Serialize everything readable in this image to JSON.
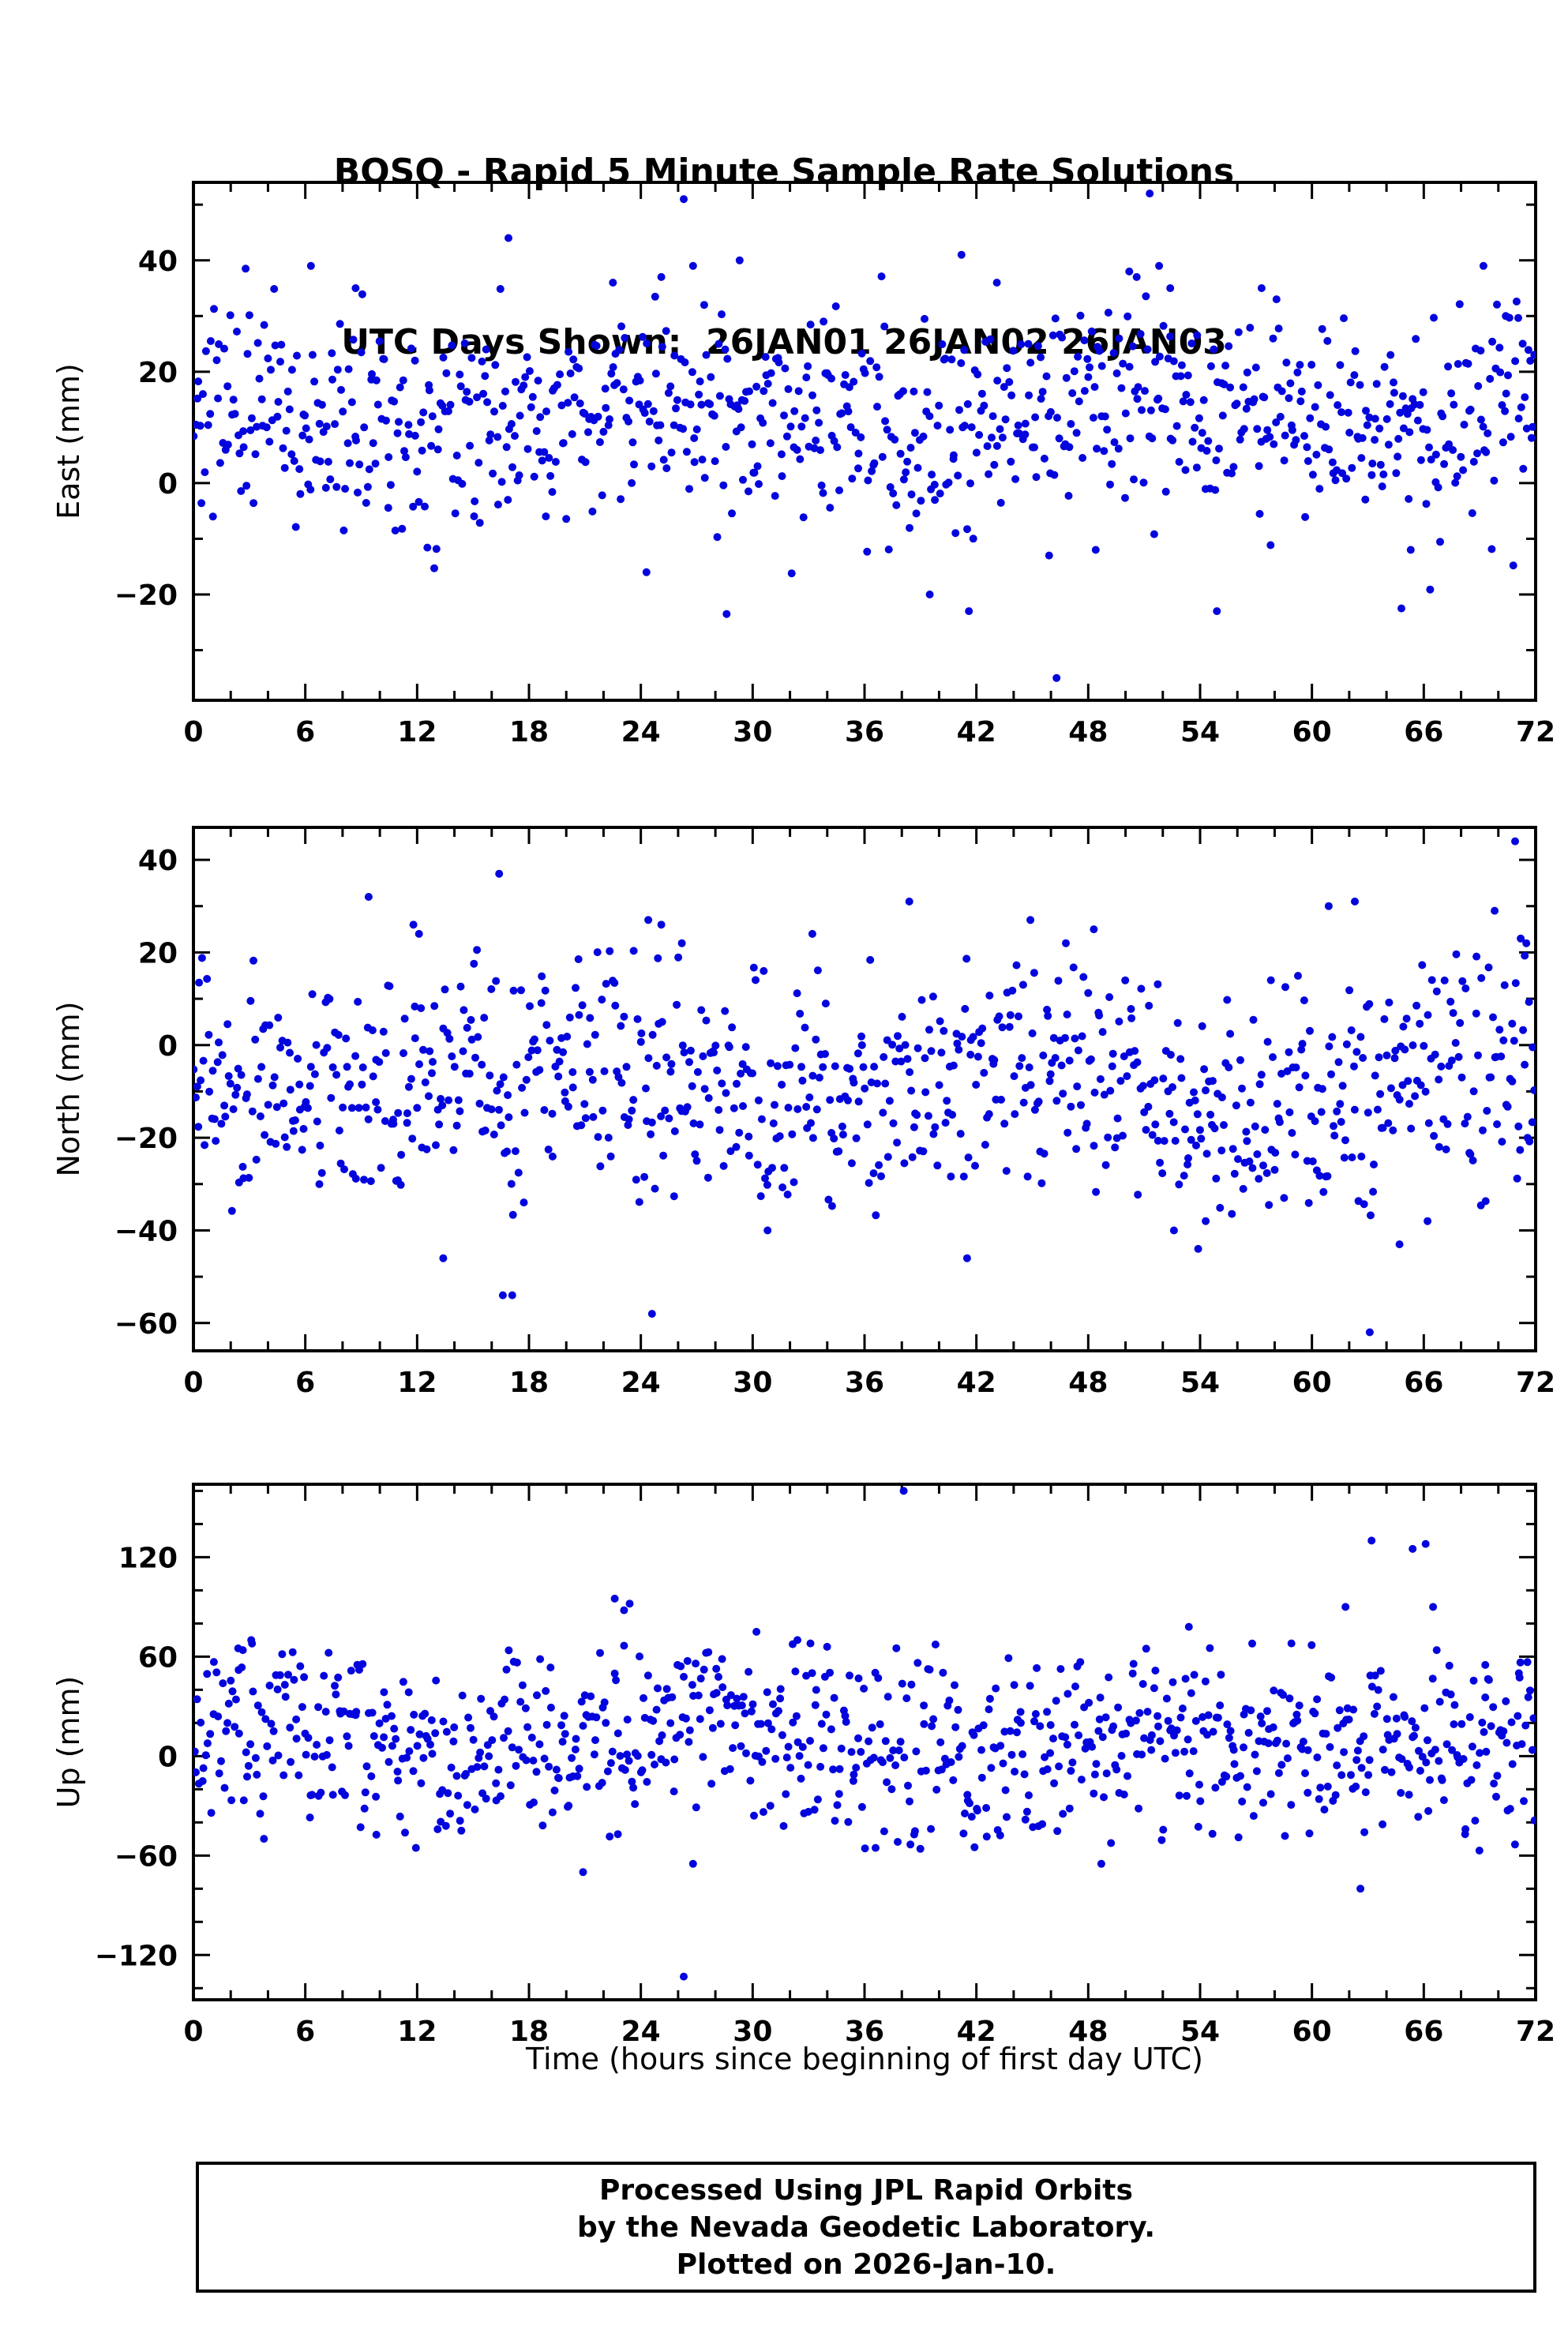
{
  "header": {
    "title": "BOSQ - Rapid 5 Minute Sample Rate Solutions",
    "subtitle": "UTC Days Shown:  26JAN01 26JAN02 26JAN03"
  },
  "xlabel": "Time (hours since beginning of first day UTC)",
  "footer": {
    "line1": "Processed Using JPL Rapid Orbits",
    "line2": "by the Nevada Geodetic Laboratory.",
    "line3": "Plotted on 2026-Jan-10."
  },
  "chart_data": [
    {
      "type": "scatter",
      "id": "east",
      "ylabel": "East (mm)",
      "marker_color": "#0404dd",
      "marker_radius": 5,
      "x_range": [
        0,
        72
      ],
      "xtick_major": 6,
      "xtick_minor": 2,
      "x_major_tick_labels": [
        0,
        6,
        12,
        18,
        24,
        30,
        36,
        42,
        48,
        54,
        60,
        66,
        72
      ],
      "ylim": [
        -39,
        54
      ],
      "yticks_major": [
        -20,
        0,
        20,
        40
      ],
      "ytick_minor": 10,
      "bulk_distribution": {
        "n": 860,
        "mean": 12,
        "std": 9,
        "clamp": [
          -25,
          41
        ],
        "seed": 101,
        "drift_amp": 3,
        "drift_period": 24,
        "drift_phase": 1.2
      },
      "outliers": [
        [
          2.8,
          38.5
        ],
        [
          6.3,
          39
        ],
        [
          8.7,
          35
        ],
        [
          16.9,
          44
        ],
        [
          22.5,
          36
        ],
        [
          24.3,
          -16
        ],
        [
          25.1,
          37
        ],
        [
          26.3,
          51
        ],
        [
          26.8,
          39
        ],
        [
          27.4,
          32
        ],
        [
          28.6,
          -23.5
        ],
        [
          29.3,
          40
        ],
        [
          33.8,
          29
        ],
        [
          39.5,
          -20
        ],
        [
          41.2,
          41
        ],
        [
          41.6,
          -23
        ],
        [
          43.1,
          36
        ],
        [
          45.9,
          -13
        ],
        [
          46.3,
          -35
        ],
        [
          48.4,
          -12
        ],
        [
          50.2,
          38
        ],
        [
          50.6,
          37
        ],
        [
          51.3,
          52
        ],
        [
          51.8,
          39
        ],
        [
          52.4,
          35
        ],
        [
          54.9,
          -23
        ],
        [
          57.3,
          35
        ],
        [
          58.1,
          33
        ],
        [
          64.8,
          -22.5
        ],
        [
          65.3,
          -12
        ],
        [
          69.2,
          39
        ],
        [
          70.4,
          30
        ]
      ]
    },
    {
      "type": "scatter",
      "id": "north",
      "ylabel": "North (mm)",
      "marker_color": "#0404dd",
      "marker_radius": 5,
      "x_range": [
        0,
        72
      ],
      "xtick_major": 6,
      "xtick_minor": 2,
      "x_major_tick_labels": [
        0,
        6,
        12,
        18,
        24,
        30,
        36,
        42,
        48,
        54,
        60,
        66,
        72
      ],
      "ylim": [
        -66,
        47
      ],
      "yticks_major": [
        -60,
        -40,
        -20,
        0,
        20,
        40
      ],
      "ytick_minor": 10,
      "bulk_distribution": {
        "n": 860,
        "mean": -8,
        "std": 13,
        "clamp": [
          -37,
          21
        ],
        "seed": 202,
        "drift_amp": 4,
        "drift_period": 24,
        "drift_phase": 2.6
      },
      "outliers": [
        [
          0.3,
          13.5
        ],
        [
          9.4,
          32
        ],
        [
          11.8,
          26
        ],
        [
          12.1,
          24
        ],
        [
          13.4,
          -46
        ],
        [
          16.4,
          37
        ],
        [
          16.6,
          -54
        ],
        [
          17.1,
          -54
        ],
        [
          24.4,
          27
        ],
        [
          24.6,
          -58
        ],
        [
          25.1,
          26
        ],
        [
          26.2,
          22
        ],
        [
          30.8,
          -40
        ],
        [
          33.2,
          24
        ],
        [
          38.4,
          31
        ],
        [
          41.5,
          -46
        ],
        [
          44.9,
          27
        ],
        [
          46.8,
          22
        ],
        [
          48.3,
          25
        ],
        [
          52.6,
          -40
        ],
        [
          53.9,
          -44
        ],
        [
          54.3,
          -38
        ],
        [
          57.8,
          14
        ],
        [
          60.9,
          30
        ],
        [
          62.3,
          31
        ],
        [
          63.1,
          -62
        ],
        [
          64.7,
          -43
        ],
        [
          66.2,
          -38
        ],
        [
          69.8,
          29
        ],
        [
          70.9,
          44
        ],
        [
          71.2,
          23
        ],
        [
          71.5,
          22
        ]
      ]
    },
    {
      "type": "scatter",
      "id": "up",
      "ylabel": "Up (mm)",
      "marker_color": "#0404dd",
      "marker_radius": 5,
      "x_range": [
        0,
        72
      ],
      "xtick_major": 6,
      "xtick_minor": 2,
      "x_major_tick_labels": [
        0,
        6,
        12,
        18,
        24,
        30,
        36,
        42,
        48,
        54,
        60,
        66,
        72
      ],
      "ylim": [
        -147,
        164
      ],
      "yticks_major": [
        -120,
        -60,
        0,
        60,
        120
      ],
      "ytick_minor": 20,
      "bulk_distribution": {
        "n": 860,
        "mean": 10,
        "std": 30,
        "clamp": [
          -62,
          68
        ],
        "seed": 303,
        "drift_amp": 10,
        "drift_period": 24,
        "drift_phase": 0.4
      },
      "outliers": [
        [
          2.4,
          65
        ],
        [
          3.1,
          70
        ],
        [
          20.9,
          -70
        ],
        [
          22.6,
          95
        ],
        [
          23.1,
          88
        ],
        [
          23.4,
          92
        ],
        [
          26.3,
          -133
        ],
        [
          26.8,
          -65
        ],
        [
          30.2,
          75
        ],
        [
          32.4,
          70
        ],
        [
          33.1,
          68
        ],
        [
          38.1,
          160
        ],
        [
          41.9,
          -55
        ],
        [
          48.7,
          -65
        ],
        [
          53.4,
          78
        ],
        [
          58.9,
          68
        ],
        [
          61.8,
          90
        ],
        [
          62.6,
          -80
        ],
        [
          63.2,
          130
        ],
        [
          65.4,
          125
        ],
        [
          66.1,
          128
        ],
        [
          66.5,
          90
        ],
        [
          69.3,
          55
        ],
        [
          71.1,
          50
        ]
      ]
    }
  ]
}
